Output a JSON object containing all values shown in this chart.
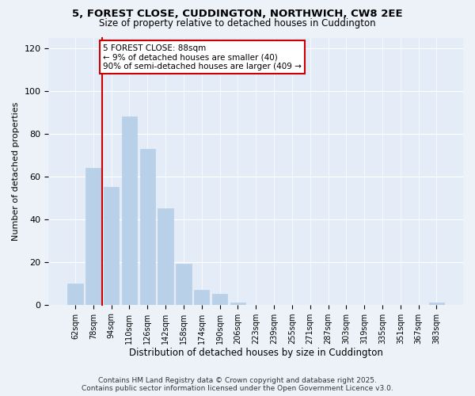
{
  "title1": "5, FOREST CLOSE, CUDDINGTON, NORTHWICH, CW8 2EE",
  "title2": "Size of property relative to detached houses in Cuddington",
  "xlabel": "Distribution of detached houses by size in Cuddington",
  "ylabel": "Number of detached properties",
  "categories": [
    "62sqm",
    "78sqm",
    "94sqm",
    "110sqm",
    "126sqm",
    "142sqm",
    "158sqm",
    "174sqm",
    "190sqm",
    "206sqm",
    "223sqm",
    "239sqm",
    "255sqm",
    "271sqm",
    "287sqm",
    "303sqm",
    "319sqm",
    "335sqm",
    "351sqm",
    "367sqm",
    "383sqm"
  ],
  "values": [
    10,
    64,
    55,
    88,
    73,
    45,
    19,
    7,
    5,
    1,
    0,
    0,
    0,
    0,
    0,
    0,
    0,
    0,
    0,
    0,
    1
  ],
  "bar_color": "#b8d0e8",
  "bar_edge_color": "#b8d0e8",
  "annotation_box_text": "5 FOREST CLOSE: 88sqm\n← 9% of detached houses are smaller (40)\n90% of semi-detached houses are larger (409 →",
  "line_color": "#cc0000",
  "box_edge_color": "#cc0000",
  "ylim": [
    0,
    125
  ],
  "yticks": [
    0,
    20,
    40,
    60,
    80,
    100,
    120
  ],
  "footer1": "Contains HM Land Registry data © Crown copyright and database right 2025.",
  "footer2": "Contains public sector information licensed under the Open Government Licence v3.0.",
  "background_color": "#edf2f9",
  "plot_bg_color": "#e4ecf7",
  "grid_color": "#ffffff",
  "title1_fontsize": 9.5,
  "title2_fontsize": 8.5
}
